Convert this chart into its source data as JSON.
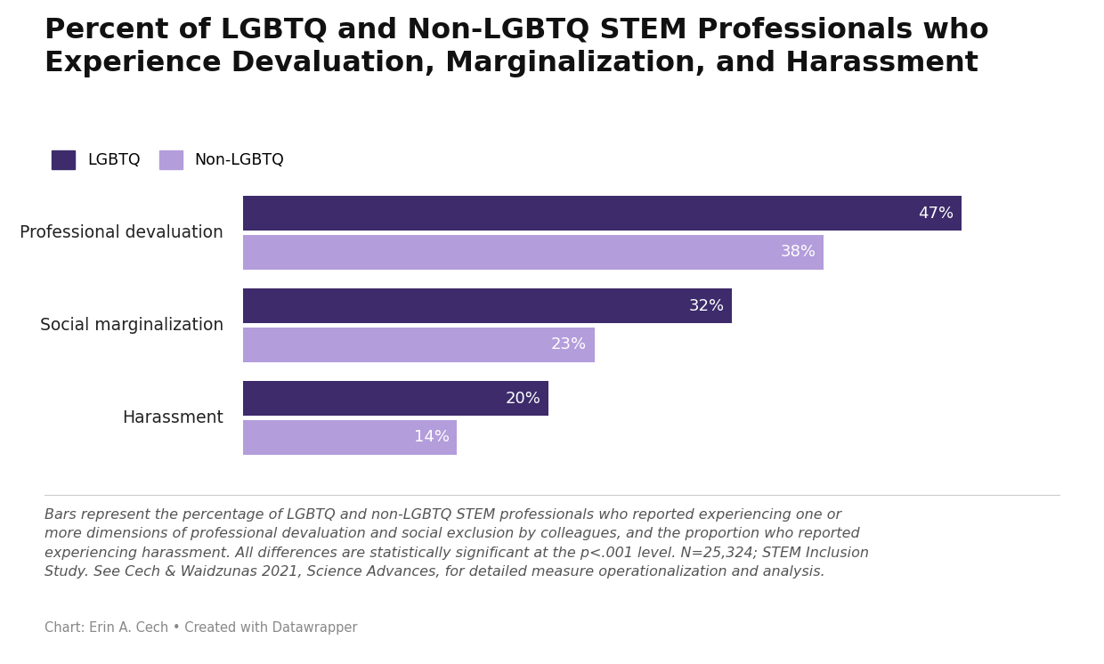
{
  "title_line1": "Percent of LGBTQ and Non-LGBTQ STEM Professionals who",
  "title_line2": "Experience Devaluation, Marginalization, and Harassment",
  "categories": [
    "Professional devaluation",
    "Social marginalization",
    "Harassment"
  ],
  "lgbtq_values": [
    47,
    32,
    20
  ],
  "nonlgbtq_values": [
    38,
    23,
    14
  ],
  "lgbtq_color": "#3d2b6b",
  "nonlgbtq_color": "#b39ddb",
  "bar_height": 0.38,
  "xlim": [
    0,
    52
  ],
  "legend_lgbtq": "LGBTQ",
  "legend_nonlgbtq": "Non-LGBTQ",
  "footnote": "Bars represent the percentage of LGBTQ and non-LGBTQ STEM professionals who reported experiencing one or\nmore dimensions of professional devaluation and social exclusion by colleagues, and the proportion who reported\nexperiencing harassment. All differences are statistically significant at the p<.001 level. N=25,324; STEM Inclusion\nStudy. See Cech & Waidzunas 2021, Science Advances, for detailed measure operationalization and analysis.",
  "credit": "Chart: Erin A. Cech • Created with Datawrapper",
  "background_color": "#ffffff",
  "title_fontsize": 23,
  "label_fontsize": 13.5,
  "bar_label_fontsize": 13,
  "footnote_fontsize": 11.5,
  "credit_fontsize": 10.5,
  "bar_label_color": "#ffffff",
  "nonlgbtq_label_color": "#ffffff",
  "category_label_color": "#222222"
}
